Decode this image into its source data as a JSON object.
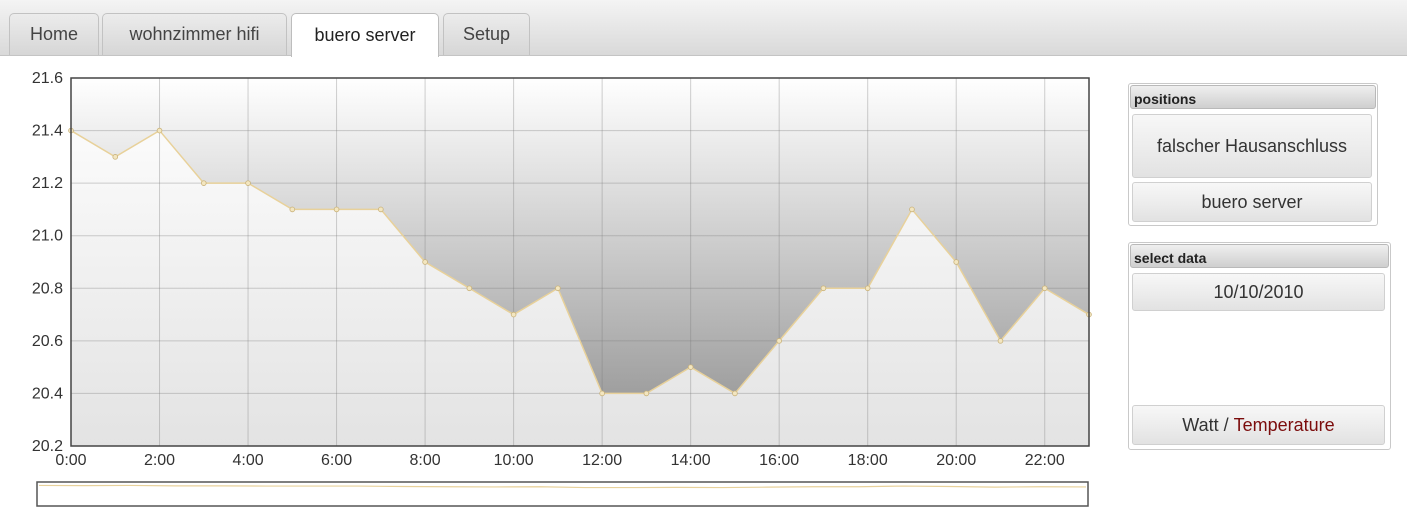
{
  "tabs": [
    {
      "label": "Home"
    },
    {
      "label": "wohnzimmer hifi"
    },
    {
      "label": "buero server"
    },
    {
      "label": "Setup"
    }
  ],
  "active_tab": "buero server",
  "colors": {
    "line": "#e8d19a",
    "point": "#f3e6c0",
    "accent_text": "#7b0c0c"
  },
  "positions_panel": {
    "title": "positions",
    "items": [
      {
        "label": "falscher Hausanschluss"
      },
      {
        "label": "buero server"
      }
    ]
  },
  "select_panel": {
    "title": "select data",
    "date": "10/10/2010",
    "toggle": {
      "left": "Watt",
      "sep": " / ",
      "right": "Temperature"
    }
  },
  "chart_data": {
    "type": "area",
    "x": [
      0,
      1,
      2,
      3,
      4,
      5,
      6,
      7,
      8,
      9,
      10,
      11,
      12,
      13,
      14,
      15,
      16,
      17,
      18,
      19,
      20,
      21,
      22,
      23
    ],
    "values": [
      21.4,
      21.3,
      21.4,
      21.2,
      21.2,
      21.1,
      21.1,
      21.1,
      20.9,
      20.8,
      20.7,
      20.8,
      20.4,
      20.4,
      20.5,
      20.4,
      20.6,
      20.8,
      20.8,
      21.1,
      20.9,
      20.6,
      20.8,
      20.7
    ],
    "xlim": [
      0,
      23
    ],
    "ylim": [
      20.2,
      21.6
    ],
    "yticks": [
      "20.2",
      "20.4",
      "20.6",
      "20.8",
      "21.0",
      "21.2",
      "21.4",
      "21.6"
    ],
    "xticks": [
      {
        "x": 0,
        "label": "0:00"
      },
      {
        "x": 2,
        "label": "2:00"
      },
      {
        "x": 4,
        "label": "4:00"
      },
      {
        "x": 6,
        "label": "6:00"
      },
      {
        "x": 8,
        "label": "8:00"
      },
      {
        "x": 10,
        "label": "10:00"
      },
      {
        "x": 12,
        "label": "12:00"
      },
      {
        "x": 14,
        "label": "14:00"
      },
      {
        "x": 16,
        "label": "16:00"
      },
      {
        "x": 18,
        "label": "18:00"
      },
      {
        "x": 20,
        "label": "20:00"
      },
      {
        "x": 22,
        "label": "22:00"
      }
    ],
    "grid": true,
    "overview": true
  }
}
